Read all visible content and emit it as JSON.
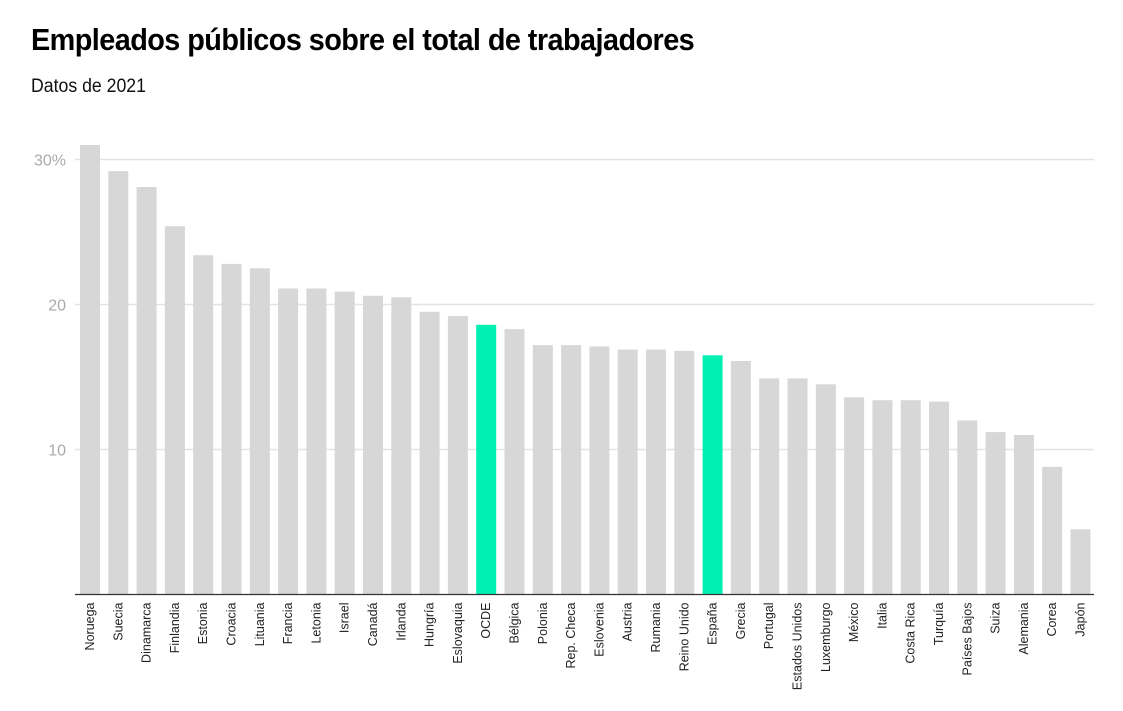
{
  "header": {
    "title": "Empleados públicos sobre el total de trabajadores",
    "subtitle": "Datos de 2021"
  },
  "colors": {
    "bar": "#d7d7d7",
    "highlight": "#00f0b4",
    "grid": "#e3e3e3",
    "axis": "#333333",
    "tick_text": "#aaaaaa"
  },
  "chart_data": {
    "type": "bar",
    "title": "Empleados públicos sobre el total de trabajadores",
    "subtitle": "Datos de 2021",
    "xlabel": "",
    "ylabel": "",
    "ylim": [
      0,
      30
    ],
    "yticks": [
      {
        "value": 10,
        "label": "10"
      },
      {
        "value": 20,
        "label": "20"
      },
      {
        "value": 30,
        "label": "30%"
      }
    ],
    "grid": true,
    "highlighted": [
      "OCDE",
      "España"
    ],
    "categories": [
      "Noruega",
      "Suecia",
      "Dinamarca",
      "Finlandia",
      "Estonia",
      "Croacia",
      "Lituania",
      "Francia",
      "Letonia",
      "Israel",
      "Canadá",
      "Irlanda",
      "Hungría",
      "Eslovaquia",
      "OCDE",
      "Bélgica",
      "Polonia",
      "Rep. Checa",
      "Eslovenia",
      "Austria",
      "Rumania",
      "Reino Unido",
      "España",
      "Grecia",
      "Portugal",
      "Estados Unidos",
      "Luxemburgo",
      "México",
      "Italia",
      "Costa Rica",
      "Turquía",
      "Países Bajos",
      "Suiza",
      "Alemania",
      "Corea",
      "Japón"
    ],
    "values": [
      31.0,
      29.2,
      28.1,
      25.4,
      23.4,
      22.8,
      22.5,
      21.1,
      21.1,
      20.9,
      20.6,
      20.5,
      19.5,
      19.2,
      18.6,
      18.3,
      17.2,
      17.2,
      17.1,
      16.9,
      16.9,
      16.8,
      16.5,
      16.1,
      14.9,
      14.9,
      14.5,
      13.6,
      13.4,
      13.4,
      13.3,
      12.0,
      11.2,
      11.0,
      8.8,
      4.5
    ]
  }
}
